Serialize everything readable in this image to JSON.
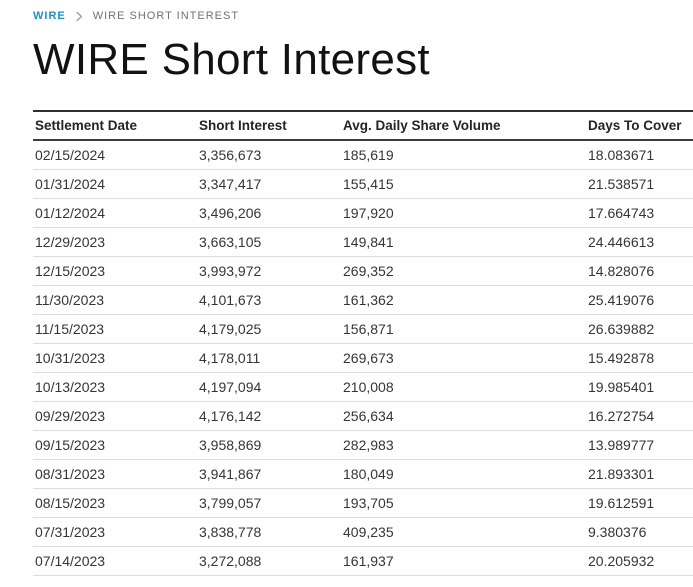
{
  "breadcrumb": {
    "home": "WIRE",
    "current": "WIRE SHORT INTEREST"
  },
  "page": {
    "title": "WIRE Short Interest"
  },
  "table": {
    "columns": [
      "Settlement Date",
      "Short Interest",
      "Avg. Daily Share Volume",
      "Days To Cover"
    ],
    "column_keys": [
      "settlement-date",
      "short-interest",
      "avg-daily-share-volume",
      "days-to-cover"
    ],
    "rows": [
      [
        "02/15/2024",
        "3,356,673",
        "185,619",
        "18.083671"
      ],
      [
        "01/31/2024",
        "3,347,417",
        "155,415",
        "21.538571"
      ],
      [
        "01/12/2024",
        "3,496,206",
        "197,920",
        "17.664743"
      ],
      [
        "12/29/2023",
        "3,663,105",
        "149,841",
        "24.446613"
      ],
      [
        "12/15/2023",
        "3,993,972",
        "269,352",
        "14.828076"
      ],
      [
        "11/30/2023",
        "4,101,673",
        "161,362",
        "25.419076"
      ],
      [
        "11/15/2023",
        "4,179,025",
        "156,871",
        "26.639882"
      ],
      [
        "10/31/2023",
        "4,178,011",
        "269,673",
        "15.492878"
      ],
      [
        "10/13/2023",
        "4,197,094",
        "210,008",
        "19.985401"
      ],
      [
        "09/29/2023",
        "4,176,142",
        "256,634",
        "16.272754"
      ],
      [
        "09/15/2023",
        "3,958,869",
        "282,983",
        "13.989777"
      ],
      [
        "08/31/2023",
        "3,941,867",
        "180,049",
        "21.893301"
      ],
      [
        "08/15/2023",
        "3,799,057",
        "193,705",
        "19.612591"
      ],
      [
        "07/31/2023",
        "3,838,778",
        "409,235",
        "9.380376"
      ],
      [
        "07/14/2023",
        "3,272,088",
        "161,937",
        "20.205932"
      ]
    ]
  },
  "colors": {
    "breadcrumb_link": "#1d8fc6",
    "breadcrumb_text": "#6e7378",
    "title_text": "#121212",
    "header_text": "#222426",
    "cell_text": "#333538",
    "table_dark_border": "#2e3033",
    "row_separator": "#dcdcdc",
    "background": "#ffffff"
  }
}
